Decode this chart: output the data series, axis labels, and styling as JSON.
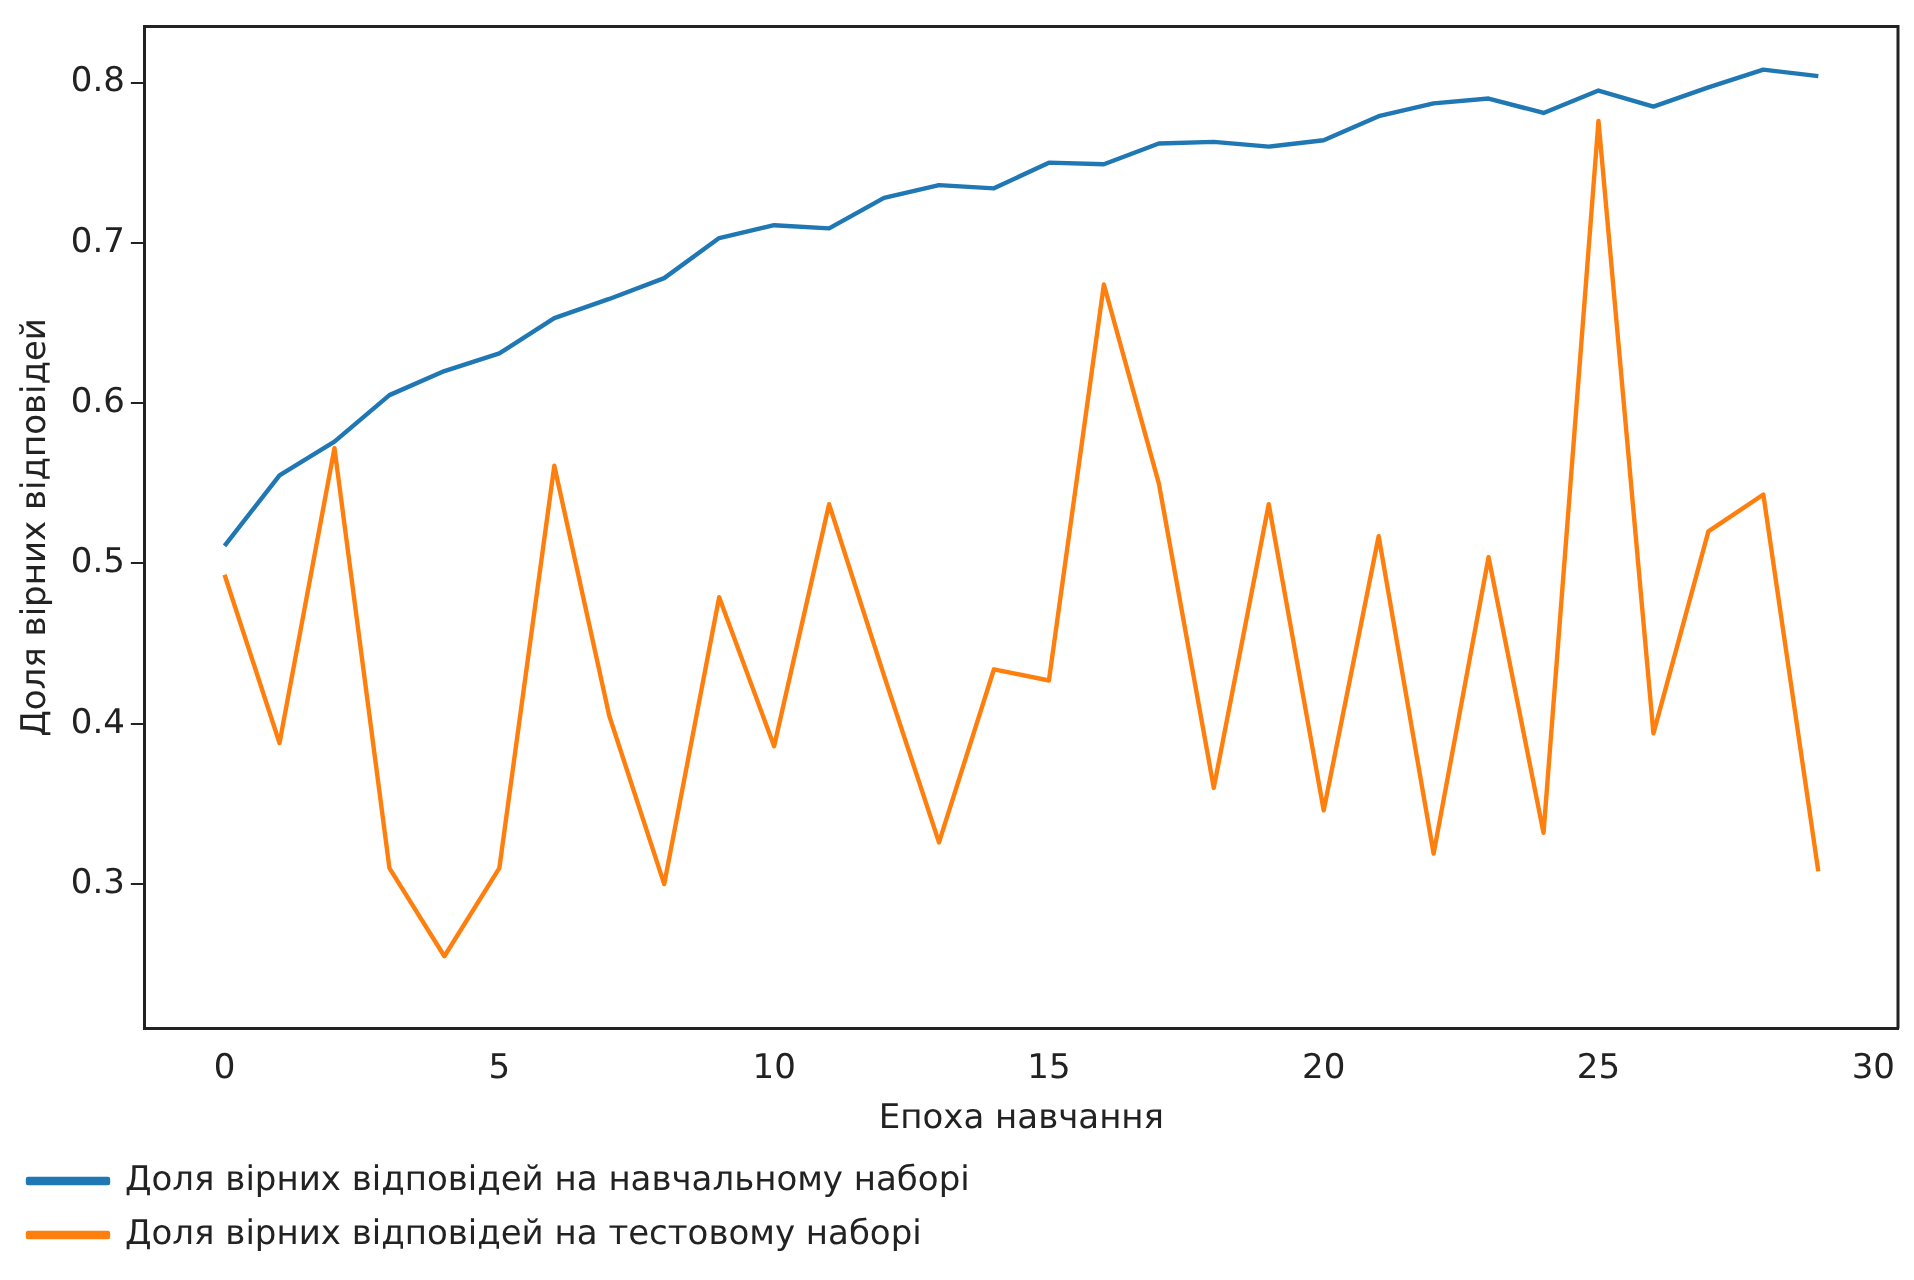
{
  "chart_data": {
    "type": "line",
    "xlabel": "Епоха навчання",
    "ylabel": "Доля вірних відповідей",
    "x": [
      0,
      1,
      2,
      3,
      4,
      5,
      6,
      7,
      8,
      9,
      10,
      11,
      12,
      13,
      14,
      15,
      16,
      17,
      18,
      19,
      20,
      21,
      22,
      23,
      24,
      25,
      26,
      27,
      28,
      29
    ],
    "series": [
      {
        "name": "Доля вірних відповідей на навчальному наборі",
        "color": "#1f77b4",
        "values": [
          0.511,
          0.555,
          0.576,
          0.605,
          0.62,
          0.631,
          0.653,
          0.665,
          0.678,
          0.703,
          0.711,
          0.709,
          0.728,
          0.736,
          0.734,
          0.75,
          0.749,
          0.762,
          0.763,
          0.76,
          0.764,
          0.779,
          0.787,
          0.79,
          0.781,
          0.795,
          0.785,
          0.797,
          0.808,
          0.804
        ]
      },
      {
        "name": "Доля вірних відповідей на тестовому наборі",
        "color": "#ff7f0e",
        "values": [
          0.493,
          0.388,
          0.572,
          0.31,
          0.255,
          0.31,
          0.561,
          0.405,
          0.3,
          0.479,
          0.386,
          0.537,
          0.43,
          0.326,
          0.434,
          0.427,
          0.674,
          0.55,
          0.36,
          0.537,
          0.346,
          0.517,
          0.319,
          0.504,
          0.332,
          0.776,
          0.394,
          0.52,
          0.543,
          0.308
        ]
      }
    ],
    "xlim": [
      -1.45,
      30.45
    ],
    "xticks": [
      0,
      5,
      10,
      15,
      20,
      25,
      30
    ],
    "ylim": [
      0.21,
      0.835
    ],
    "yticks": [
      0.3,
      0.4,
      0.5,
      0.6,
      0.7,
      0.8
    ],
    "grid": false,
    "legend": "bottom",
    "marker": "none",
    "line_style": "solid"
  }
}
